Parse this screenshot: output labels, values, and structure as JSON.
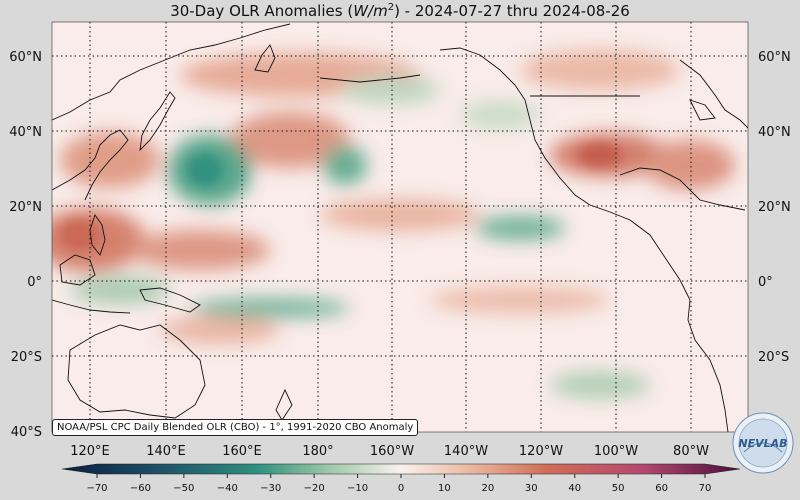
{
  "title": {
    "prefix": "30-Day OLR Anomalies (",
    "unit_base": "W/m",
    "unit_exp": "2",
    "suffix": ") - 2024-07-27 thru 2024-08-26"
  },
  "map": {
    "projection": "equirectangular, Pacific-centered",
    "lon_range": [
      100,
      -68
    ],
    "lat_range": [
      -40,
      68
    ],
    "lat_labels": [
      "60°N",
      "40°N",
      "20°N",
      "0°",
      "20°S",
      "40°S"
    ],
    "lon_labels": [
      "120°E",
      "140°E",
      "160°E",
      "180°",
      "160°W",
      "140°W",
      "120°W",
      "100°W",
      "80°W"
    ],
    "gridlines": "dotted",
    "colors": {
      "background": "#d9d9d9",
      "neutral": "#f9ecea",
      "positive": "#d9735f",
      "negative": "#3e9a7d"
    },
    "anomaly_regions": [
      {
        "sign": "positive",
        "label": "northern Pacific warm band",
        "strength": 0.6
      },
      {
        "sign": "positive",
        "label": "Philippine Sea / western Pacific",
        "strength": 0.8
      },
      {
        "sign": "positive",
        "label": "Mexico / southern US",
        "strength": 0.75
      },
      {
        "sign": "negative",
        "label": "subtropical NW Pacific",
        "strength": 0.8
      },
      {
        "sign": "negative",
        "label": "central Pacific 30°N",
        "strength": 0.55
      },
      {
        "sign": "negative",
        "label": "eastern Pacific ITCZ",
        "strength": 0.6
      },
      {
        "sign": "negative",
        "label": "tropical band 5°S",
        "strength": 0.55
      }
    ]
  },
  "source_note": "NOAA/PSL CPC Daily Blended OLR (CBO) - 1°, 1991-2020 CBO Anomaly",
  "colorbar": {
    "min": -70,
    "max": 70,
    "ticks": [
      "−70",
      "−60",
      "−50",
      "−40",
      "−30",
      "−20",
      "−10",
      "0",
      "10",
      "20",
      "30",
      "40",
      "50",
      "60",
      "70"
    ],
    "stops": [
      {
        "value": -70,
        "color": "#0a1d3d"
      },
      {
        "value": -50,
        "color": "#1f5068"
      },
      {
        "value": -30,
        "color": "#2e8f7e"
      },
      {
        "value": -15,
        "color": "#9dc7a8"
      },
      {
        "value": 0,
        "color": "#fbf1ee"
      },
      {
        "value": 15,
        "color": "#e9b59d"
      },
      {
        "value": 30,
        "color": "#cf6e58"
      },
      {
        "value": 50,
        "color": "#b4486e"
      },
      {
        "value": 70,
        "color": "#4a0f3a"
      }
    ]
  },
  "logo": {
    "text": "NEVLAB"
  }
}
